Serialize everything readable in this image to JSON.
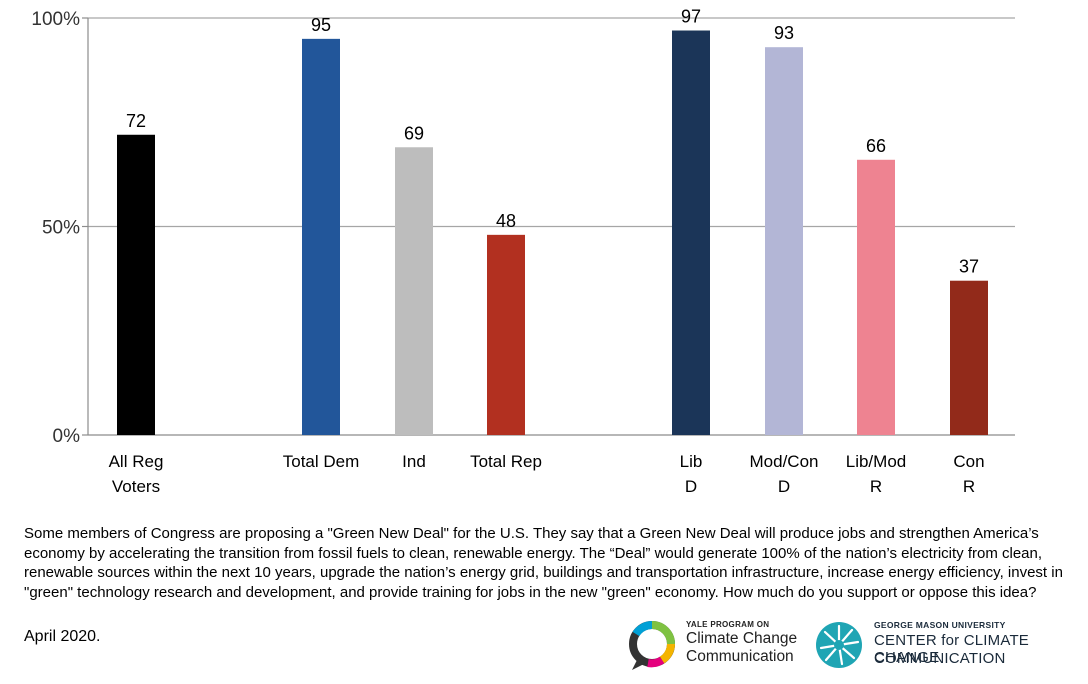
{
  "chart_data": {
    "type": "bar",
    "categories": [
      [
        "All Reg",
        "Voters"
      ],
      [
        "Total Dem"
      ],
      [
        "Ind"
      ],
      [
        "Total Rep"
      ],
      [
        "Lib",
        "D"
      ],
      [
        "Mod/Con",
        "D"
      ],
      [
        "Lib/Mod",
        "R"
      ],
      [
        "Con",
        "R"
      ]
    ],
    "values": [
      72,
      95,
      69,
      48,
      97,
      93,
      66,
      37
    ],
    "colors": [
      "#000000",
      "#22569a",
      "#bdbdbd",
      "#b23020",
      "#1b3558",
      "#b3b6d6",
      "#ee8391",
      "#922a1a"
    ],
    "ylim": [
      0,
      100
    ],
    "yticks": [
      {
        "value": 0,
        "label": "0%"
      },
      {
        "value": 50,
        "label": "50%"
      },
      {
        "value": 100,
        "label": "100%"
      }
    ],
    "grid": true,
    "gridlines": [
      50,
      100
    ]
  },
  "question": "Some members of Congress are proposing a \"Green New Deal\" for the U.S. They say that a Green New Deal will produce jobs and strengthen America’s economy by accelerating the transition from fossil fuels to clean, renewable energy. The “Deal” would generate 100% of the nation’s electricity from clean, renewable sources within the next 10 years, upgrade the nation’s energy grid, buildings and transportation infrastructure, increase energy efficiency, invest in \"green\" technology research and development, and provide training for jobs in the new \"green\" economy. How much do you support or oppose this idea?",
  "date": "April 2020.",
  "logos": {
    "yale": {
      "small": "YALE PROGRAM ON",
      "line1": "Climate Change",
      "line2": "Communication"
    },
    "gmu": {
      "small": "GEORGE MASON UNIVERSITY",
      "line1": "CENTER for CLIMATE CHANGE",
      "line2": "COMMUNICATION"
    }
  }
}
